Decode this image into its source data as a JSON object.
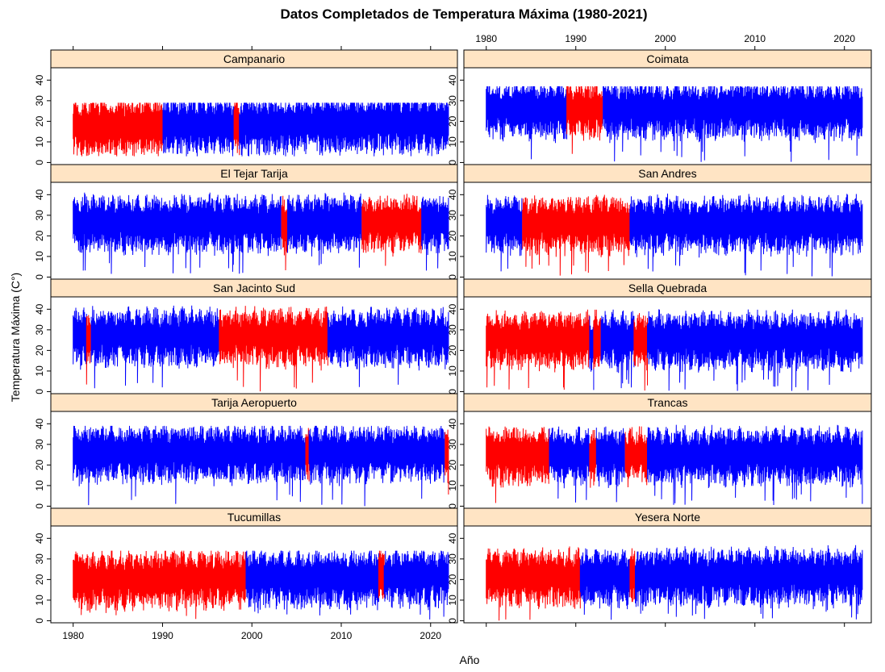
{
  "chart_data": {
    "type": "line",
    "title": "Datos Completados de Temperatura Máxima (1980-2021)",
    "xlabel": "Año",
    "ylabel": "Temperatura Máxima (C°)",
    "xlim": [
      1977.5,
      2023
    ],
    "ylim": [
      -1,
      46
    ],
    "x_ticks": [
      1980,
      1990,
      2000,
      2010,
      2020
    ],
    "y_ticks": [
      0,
      10,
      20,
      30,
      40
    ],
    "colors": {
      "observed": "#0000ff",
      "completed": "#ff0000",
      "strip": "#ffe4c4"
    },
    "layout": "2 columns x 5 rows",
    "panels": [
      {
        "name": "Campanario",
        "mean": 17.5,
        "amp": 3.5,
        "max": 29,
        "min": 3,
        "trend": 0.05,
        "segments": [
          [
            1980,
            1990,
            "completed"
          ],
          [
            1990,
            1998,
            "observed"
          ],
          [
            1998,
            1998.6,
            "completed"
          ],
          [
            1998.6,
            2022,
            "observed"
          ]
        ]
      },
      {
        "name": "Coimata",
        "mean": 26,
        "amp": 4,
        "max": 37,
        "min": 0,
        "trend": 0,
        "segments": [
          [
            1980,
            1989,
            "observed"
          ],
          [
            1989,
            1993,
            "completed"
          ],
          [
            1993,
            2022,
            "observed"
          ]
        ]
      },
      {
        "name": "El Tejar Tarija",
        "mean": 26.5,
        "amp": 4,
        "max": 41,
        "min": 1,
        "trend": 0,
        "segments": [
          [
            1980,
            2003.3,
            "observed"
          ],
          [
            2003.3,
            2004,
            "completed"
          ],
          [
            2004,
            2012.3,
            "observed"
          ],
          [
            2012.3,
            2019,
            "completed"
          ],
          [
            2019,
            2022,
            "observed"
          ]
        ]
      },
      {
        "name": "San Andres",
        "mean": 26,
        "amp": 4,
        "max": 41,
        "min": 0,
        "trend": 0,
        "segments": [
          [
            1980,
            1984,
            "observed"
          ],
          [
            1984,
            1996,
            "completed"
          ],
          [
            1996,
            2022,
            "observed"
          ]
        ]
      },
      {
        "name": "San Jacinto Sud",
        "mean": 27,
        "amp": 4.5,
        "max": 43,
        "min": 0,
        "trend": 0,
        "segments": [
          [
            1980,
            1981.5,
            "observed"
          ],
          [
            1981.5,
            1982,
            "completed"
          ],
          [
            1982,
            1996.3,
            "observed"
          ],
          [
            1996.3,
            2008.5,
            "completed"
          ],
          [
            2008.5,
            2022,
            "observed"
          ]
        ]
      },
      {
        "name": "Sella Quebrada",
        "mean": 25.5,
        "amp": 4,
        "max": 40,
        "min": 0,
        "trend": 0,
        "segments": [
          [
            1980,
            1991.5,
            "completed"
          ],
          [
            1991.5,
            1992,
            "observed"
          ],
          [
            1992,
            1992.8,
            "completed"
          ],
          [
            1992.8,
            1996.5,
            "observed"
          ],
          [
            1996.5,
            1998,
            "completed"
          ],
          [
            1998,
            2022,
            "observed"
          ]
        ]
      },
      {
        "name": "Tarija Aeropuerto",
        "mean": 26,
        "amp": 4,
        "max": 39,
        "min": 0,
        "trend": 0,
        "segments": [
          [
            1980,
            2006,
            "observed"
          ],
          [
            2006,
            2006.4,
            "completed"
          ],
          [
            2006.4,
            2021.6,
            "observed"
          ],
          [
            2021.6,
            2022,
            "completed"
          ]
        ]
      },
      {
        "name": "Trancas",
        "mean": 25,
        "amp": 4,
        "max": 40,
        "min": 0,
        "trend": 0,
        "segments": [
          [
            1980,
            1987,
            "completed"
          ],
          [
            1987,
            1991.5,
            "observed"
          ],
          [
            1991.5,
            1992.3,
            "completed"
          ],
          [
            1992.3,
            1995.5,
            "observed"
          ],
          [
            1995.5,
            1998,
            "completed"
          ],
          [
            1998,
            2022,
            "observed"
          ]
        ]
      },
      {
        "name": "Tucumillas",
        "mean": 20,
        "amp": 4,
        "max": 34,
        "min": 0,
        "trend": 0.04,
        "segments": [
          [
            1980,
            1999.3,
            "completed"
          ],
          [
            1999.3,
            2014.2,
            "observed"
          ],
          [
            2014.2,
            2014.8,
            "completed"
          ],
          [
            2014.8,
            2022,
            "observed"
          ]
        ]
      },
      {
        "name": "Yesera Norte",
        "mean": 21.5,
        "amp": 4,
        "max": 39,
        "min": 0,
        "trend": 0.02,
        "segments": [
          [
            1980,
            1990.5,
            "completed"
          ],
          [
            1990.5,
            1996,
            "observed"
          ],
          [
            1996,
            1996.6,
            "completed"
          ],
          [
            1996.6,
            2022,
            "observed"
          ]
        ]
      }
    ]
  }
}
